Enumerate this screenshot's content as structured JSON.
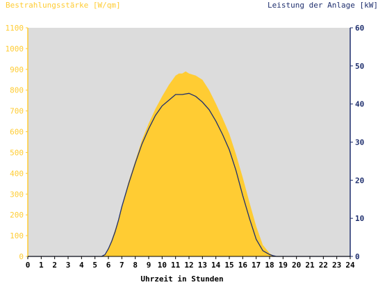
{
  "chart_data": {
    "type": "area",
    "left_axis_title": "Bestrahlungsstärke [W/qm]",
    "right_axis_title": "Leistung der Anlage [kW]",
    "xlabel": "Uhrzeit in Stunden",
    "xlim": [
      0,
      24
    ],
    "x_ticks": [
      "0",
      "1",
      "2",
      "3",
      "4",
      "5",
      "6",
      "7",
      "8",
      "9",
      "10",
      "11",
      "12",
      "13",
      "14",
      "15",
      "16",
      "17",
      "18",
      "19",
      "20",
      "21",
      "22",
      "23",
      "24"
    ],
    "y_left_lim": [
      0,
      1100
    ],
    "y_left_ticks": [
      "0",
      "100",
      "200",
      "300",
      "400",
      "500",
      "600",
      "700",
      "800",
      "900",
      "1000",
      "1100"
    ],
    "y_right_lim": [
      0,
      60
    ],
    "y_right_ticks": [
      "0",
      "10",
      "20",
      "30",
      "40",
      "50",
      "60"
    ],
    "grid": false,
    "colors": {
      "plot_bg": "#dcdcdc",
      "irradiance": "#ffcc33",
      "power": "#1f2f6e",
      "left_axis_text": "#ffcc33",
      "right_axis_text": "#1f2f6e",
      "x_axis_text": "#000000"
    },
    "series": [
      {
        "key": "irradiance",
        "axis": "left",
        "style": "area",
        "x": [
          0,
          5.5,
          5.75,
          6,
          6.25,
          6.5,
          6.75,
          7,
          7.5,
          8,
          8.5,
          9,
          9.5,
          10,
          10.5,
          11,
          11.25,
          11.5,
          11.75,
          12,
          12.25,
          12.5,
          12.75,
          13,
          13.5,
          14,
          14.5,
          15,
          15.5,
          16,
          16.5,
          17,
          17.5,
          18,
          18.25,
          18.5,
          24
        ],
        "values": [
          0,
          0,
          10,
          40,
          80,
          130,
          180,
          240,
          360,
          460,
          560,
          640,
          710,
          770,
          825,
          870,
          880,
          880,
          890,
          880,
          875,
          870,
          860,
          850,
          800,
          735,
          665,
          590,
          490,
          380,
          260,
          145,
          55,
          15,
          5,
          0,
          0
        ]
      },
      {
        "key": "power",
        "axis": "right",
        "style": "line",
        "x": [
          0,
          5.5,
          5.75,
          6,
          6.25,
          6.5,
          6.75,
          7,
          7.5,
          8,
          8.5,
          9,
          9.5,
          10,
          10.5,
          11,
          11.5,
          12,
          12.5,
          13,
          13.5,
          14,
          14.5,
          15,
          15.5,
          16,
          16.5,
          17,
          17.5,
          18,
          18.25,
          18.5,
          24
        ],
        "values": [
          0,
          0,
          0.5,
          2,
          4,
          6.5,
          9.5,
          13,
          19,
          24.5,
          29.5,
          33.5,
          37,
          39.5,
          41,
          42.5,
          42.5,
          42.8,
          42,
          40.5,
          38.5,
          35.5,
          32,
          28,
          22.5,
          16,
          10,
          4.5,
          1.5,
          0.5,
          0.2,
          0,
          0
        ]
      }
    ]
  }
}
